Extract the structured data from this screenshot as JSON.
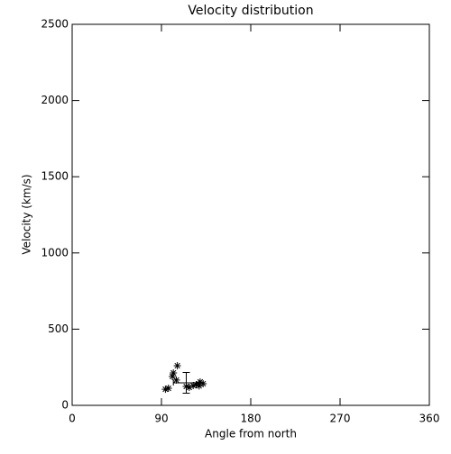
{
  "chart_data": {
    "type": "scatter",
    "title": "Velocity distribution",
    "x_label": "Angle from north",
    "y_label": "Velocity (km/s)",
    "xlim": [
      0,
      360
    ],
    "xticks": [
      0,
      90,
      180,
      270,
      360
    ],
    "ylim": [
      0,
      2500
    ],
    "yticks": [
      0,
      500,
      1000,
      1500,
      2000,
      2500
    ],
    "color": "#000000",
    "x": [
      94,
      97,
      101,
      102,
      106,
      105,
      115,
      118,
      122,
      125,
      129,
      132,
      128
    ],
    "y": [
      106,
      112,
      189,
      213,
      260,
      166,
      124,
      118,
      130,
      136,
      154,
      142,
      128
    ],
    "mean": {
      "x": 115,
      "y": 148,
      "xerr": 13,
      "yerr": 68
    }
  }
}
